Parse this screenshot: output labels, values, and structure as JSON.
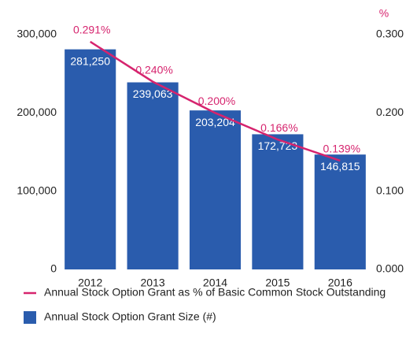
{
  "chart_data": {
    "type": "bar_line",
    "categories": [
      "2012",
      "2013",
      "2014",
      "2015",
      "2016"
    ],
    "series": [
      {
        "name": "Annual Stock Option Grant as % of Basic Common Stock Outstanding",
        "type": "line",
        "color": "#d6246e",
        "axis": "y2",
        "values": [
          0.291,
          0.24,
          0.2,
          0.166,
          0.139
        ],
        "value_labels": [
          "0.291%",
          "0.240%",
          "0.200%",
          "0.166%",
          "0.139%"
        ]
      },
      {
        "name": "Annual Stock Option Grant Size (#)",
        "type": "bar",
        "color": "#2a5cad",
        "values": [
          281250,
          239063,
          203204,
          172723,
          146815
        ],
        "value_labels": [
          "281,250",
          "239,063",
          "203,204",
          "172,723",
          "146,815"
        ]
      }
    ],
    "ylim": [
      0,
      300000
    ],
    "yticks": [
      0,
      {
        "value": 100000,
        "label": "100,000"
      },
      {
        "value": 200000,
        "label": "200,000"
      },
      {
        "value": 300000,
        "label": "300,000"
      }
    ],
    "y2lim": [
      0,
      0.3
    ],
    "y2ticks": [
      {
        "value": 0,
        "label": "0.000"
      },
      {
        "value": 0.1,
        "label": "0.100"
      },
      {
        "value": 0.2,
        "label": "0.200"
      },
      {
        "value": 0.3,
        "label": "0.300"
      }
    ],
    "y2_label": "%"
  }
}
